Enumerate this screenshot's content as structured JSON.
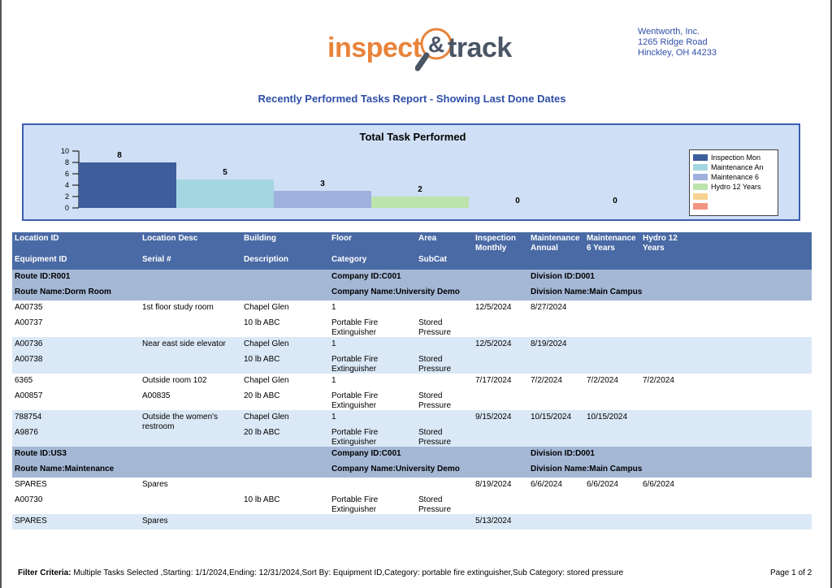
{
  "header": {
    "logo_left": "inspect",
    "logo_amp": "&",
    "logo_right": "track",
    "company_name": "Wentworth, Inc.",
    "company_address1": "1265 Ridge Road",
    "company_address2": "Hinckley, OH 44233",
    "report_title": "Recently Performed Tasks Report - Showing Last Done Dates"
  },
  "chart_data": {
    "type": "bar",
    "title": "Total Task Performed",
    "categories": [
      "Inspection Mon",
      "Maintenance An",
      "Maintenance 6",
      "Hydro 12 Years",
      "",
      ""
    ],
    "values": [
      8,
      5,
      3,
      2,
      0,
      0
    ],
    "colors": [
      "#3d5d9b",
      "#a4d6e2",
      "#9fb0de",
      "#bde3ad",
      "#f6d391",
      "#f39480"
    ],
    "ylim": [
      0,
      10
    ],
    "yticks": [
      0,
      2,
      4,
      6,
      8,
      10
    ],
    "legend": "right"
  },
  "table": {
    "headers_row1": [
      "Location ID",
      "Location  Desc",
      "Building",
      "Floor",
      "Area",
      "Inspection Monthly",
      "Maintenance Annual",
      "Maintenance 6 Years",
      "Hydro 12 Years"
    ],
    "headers_row2": [
      "Equipment ID",
      "Serial #",
      "Description",
      "Category",
      "SubCat"
    ],
    "groups": [
      {
        "route_id": "Route ID:R001",
        "company_id": "Company ID:C001",
        "division_id": "Division ID:D001",
        "route_name": "Route Name:Dorm Room",
        "company_name": "Company Name:University Demo",
        "division_name": "Division Name:Main Campus",
        "records": [
          {
            "loc_id": "A00735",
            "loc_desc": "1st floor study room",
            "building": "Chapel Glen",
            "floor": "1",
            "area": "",
            "insp": "12/5/2024",
            "maint_a": "8/27/2024",
            "maint_6": "",
            "hydro": "",
            "equip_id": "A00737",
            "serial": "",
            "description": "10 lb ABC",
            "category": "Portable Fire Extinguisher",
            "subcat": "Stored Pressure"
          },
          {
            "loc_id": "A00736",
            "loc_desc": "Near east side elevator",
            "building": "Chapel Glen",
            "floor": "1",
            "area": "",
            "insp": "12/5/2024",
            "maint_a": "8/19/2024",
            "maint_6": "",
            "hydro": "",
            "equip_id": "A00738",
            "serial": "",
            "description": "10 lb ABC",
            "category": "Portable Fire Extinguisher",
            "subcat": "Stored Pressure"
          },
          {
            "loc_id": "6365",
            "loc_desc": "Outside room 102",
            "building": "Chapel Glen",
            "floor": "1",
            "area": "",
            "insp": "7/17/2024",
            "maint_a": "7/2/2024",
            "maint_6": "7/2/2024",
            "hydro": "7/2/2024",
            "equip_id": "A00857",
            "serial": "A00835",
            "description": "20 lb ABC",
            "category": "Portable Fire Extinguisher",
            "subcat": "Stored Pressure"
          },
          {
            "loc_id": "788754",
            "loc_desc": "Outside the women's restroom",
            "building": "Chapel Glen",
            "floor": "1",
            "area": "",
            "insp": "9/15/2024",
            "maint_a": "10/15/2024",
            "maint_6": "10/15/2024",
            "hydro": "",
            "equip_id": "A9876",
            "serial": "",
            "description": "20 lb ABC",
            "category": "Portable Fire Extinguisher",
            "subcat": "Stored Pressure"
          }
        ]
      },
      {
        "route_id": "Route ID:US3",
        "company_id": "Company ID:C001",
        "division_id": "Division ID:D001",
        "route_name": "Route Name:Maintenance",
        "company_name": "Company Name:University Demo",
        "division_name": "Division Name:Main Campus",
        "records": [
          {
            "loc_id": "SPARES",
            "loc_desc": "Spares",
            "building": "",
            "floor": "",
            "area": "",
            "insp": "8/19/2024",
            "maint_a": "6/6/2024",
            "maint_6": "6/6/2024",
            "hydro": "6/6/2024",
            "equip_id": "A00730",
            "serial": "",
            "description": "10 lb ABC",
            "category": "Portable Fire Extinguisher",
            "subcat": "Stored Pressure"
          }
        ],
        "trailing": {
          "loc_id": "SPARES",
          "loc_desc": "Spares",
          "insp": "5/13/2024"
        }
      }
    ]
  },
  "footer": {
    "filter_label": "Filter Criteria:",
    "filter_text": "Multiple Tasks Selected ,Starting: 1/1/2024,Ending: 12/31/2024,Sort By: Equipment ID,Category: portable fire extinguisher,Sub Category: stored pressure",
    "page_text": "Page 1  of  2"
  }
}
